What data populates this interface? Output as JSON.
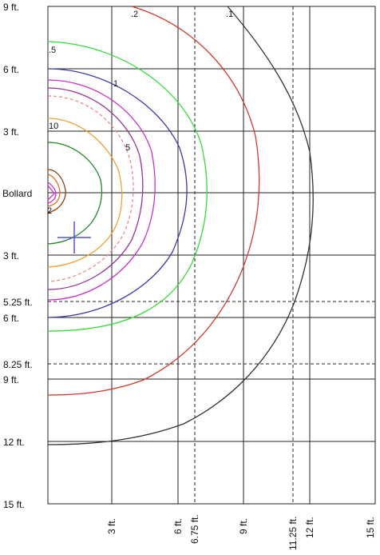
{
  "y_labels": {
    "top_9": "9 ft.",
    "top_6": "6 ft.",
    "top_3": "3 ft.",
    "bollard": "Bollard",
    "bot_3": "3 ft.",
    "bot_525": "5.25 ft.",
    "bot_6": "6 ft.",
    "bot_825": "8.25 ft.",
    "bot_9": "9 ft.",
    "bot_12": "12 ft.",
    "bot_15": "15 ft."
  },
  "x_labels": {
    "x3": "3 ft.",
    "x6": "6 ft.",
    "x675": "6.75 ft.",
    "x9": "9 ft.",
    "x1125": "11.25 ft.",
    "x12": "12 ft.",
    "x15": "15 ft."
  },
  "contour_labels": {
    "c_2": ".2",
    "c_1": ".1",
    "c_5": ".5",
    "c_one": "1",
    "c_ten": "10",
    "c_five": "5",
    "c_two": "2"
  },
  "chart_data": {
    "type": "contour",
    "origin": "bollard",
    "x_ticks_ft": [
      3,
      6,
      6.75,
      9,
      11.25,
      12,
      15
    ],
    "y_ticks_ft_above": [
      3,
      6,
      9
    ],
    "y_ticks_ft_below": [
      3,
      5.25,
      6,
      8.25,
      9,
      12,
      15
    ],
    "dashed_lines_ft": {
      "x": [
        6.75,
        11.25
      ],
      "y_below": [
        5.25,
        8.25
      ]
    },
    "contours": [
      {
        "label": ".1",
        "color": "#333333",
        "reach_ft": 12.3
      },
      {
        "label": ".2",
        "color": "#d33a2c",
        "reach_ft": 10
      },
      {
        "label": ".5",
        "color": "#33dd33",
        "reach_ft": 7.5
      },
      {
        "label": "1",
        "color": "#3a3aaa",
        "reach_ft": 6.5
      },
      {
        "label": "",
        "color": "#cc33cc",
        "reach_ft": 5.5
      },
      {
        "label": "5",
        "color": "#993399",
        "reach_ft": 4.5
      },
      {
        "label": "",
        "color": "#ee8888",
        "reach_ft": 4.5,
        "dashed": true
      },
      {
        "label": "10",
        "color": "#f0a030",
        "reach_ft": 3.5
      },
      {
        "label": "",
        "color": "#228822",
        "reach_ft": 2.5
      },
      {
        "label": "2",
        "color": "#8b4513",
        "reach_ft": 0.6
      }
    ],
    "marker": {
      "x_ft": 1.2,
      "y_ft_below": 2.1,
      "color": "#5555cc"
    }
  }
}
